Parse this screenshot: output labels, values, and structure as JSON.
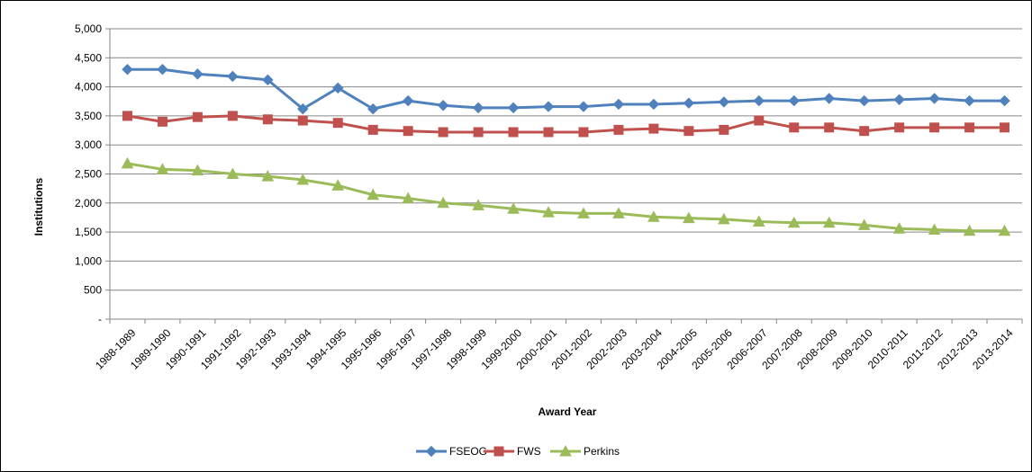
{
  "chart_data": {
    "type": "line",
    "title": "",
    "xlabel": "Award Year",
    "ylabel": "Institutions",
    "ylim": [
      0,
      5000
    ],
    "yticks": [
      0,
      500,
      1000,
      1500,
      2000,
      2500,
      3000,
      3500,
      4000,
      4500,
      5000
    ],
    "ytick_labels": [
      "-",
      "500",
      "1,000",
      "1,500",
      "2,000",
      "2,500",
      "3,000",
      "3,500",
      "4,000",
      "4,500",
      "5,000"
    ],
    "grid": "horizontal",
    "legend_position": "bottom",
    "categories": [
      "1988-1989",
      "1989-1990",
      "1990-1991",
      "1991-1992",
      "1992-1993",
      "1993-1994",
      "1994-1995",
      "1995-1996",
      "1996-1997",
      "1997-1998",
      "1998-1999",
      "1999-2000",
      "2000-2001",
      "2001-2002",
      "2002-2003",
      "2003-2004",
      "2004-2005",
      "2005-2006",
      "2006-2007",
      "2007-2008",
      "2008-2009",
      "2009-2010",
      "2010-2011",
      "2011-2012",
      "2012-2013",
      "2013-2014"
    ],
    "series": [
      {
        "name": "FSEOG",
        "color": "#4F81BD",
        "marker": "diamond",
        "values": [
          4300,
          4300,
          4220,
          4180,
          4120,
          3620,
          3980,
          3620,
          3760,
          3680,
          3640,
          3640,
          3660,
          3660,
          3700,
          3700,
          3720,
          3740,
          3760,
          3760,
          3800,
          3760,
          3780,
          3800,
          3760,
          3760
        ]
      },
      {
        "name": "FWS",
        "color": "#C0504D",
        "marker": "square",
        "values": [
          3500,
          3400,
          3480,
          3500,
          3440,
          3420,
          3380,
          3260,
          3240,
          3220,
          3220,
          3220,
          3220,
          3220,
          3260,
          3280,
          3240,
          3260,
          3420,
          3300,
          3300,
          3240,
          3300,
          3300,
          3300,
          3300
        ]
      },
      {
        "name": "Perkins",
        "color": "#9BBB59",
        "marker": "triangle",
        "values": [
          2680,
          2580,
          2560,
          2500,
          2460,
          2400,
          2300,
          2140,
          2080,
          2000,
          1960,
          1900,
          1840,
          1820,
          1820,
          1760,
          1740,
          1720,
          1680,
          1660,
          1660,
          1620,
          1560,
          1540,
          1520,
          1520
        ]
      }
    ]
  }
}
